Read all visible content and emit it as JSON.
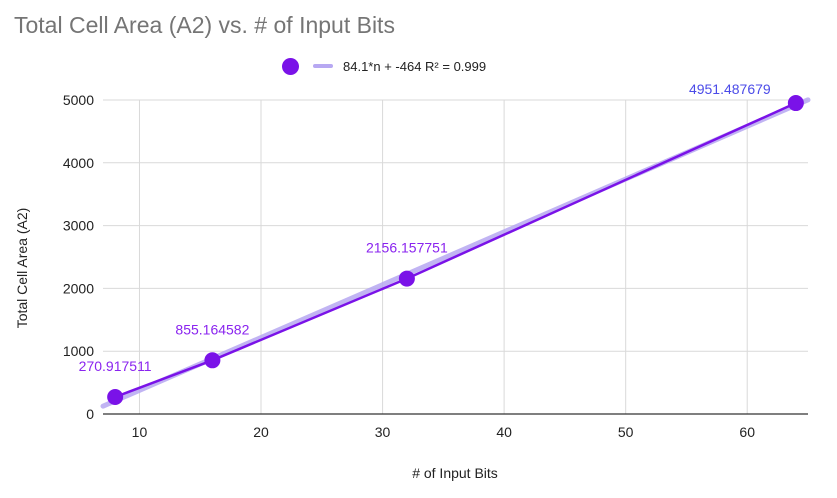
{
  "chart_data": {
    "type": "scatter",
    "title": "Total Cell Area (A2) vs. # of Input Bits",
    "xlabel": "# of Input Bits",
    "ylabel": "Total Cell Area (A2)",
    "xlim": [
      7,
      65
    ],
    "ylim": [
      0,
      5000
    ],
    "x_ticks": [
      10,
      20,
      30,
      40,
      50,
      60
    ],
    "y_ticks": [
      0,
      1000,
      2000,
      3000,
      4000,
      5000
    ],
    "grid": true,
    "legend_position": "top",
    "series": [
      {
        "x": [
          8,
          16,
          32,
          64
        ],
        "y": [
          270.917511,
          855.164582,
          2156.157751,
          4951.487679
        ],
        "labels": [
          "270.917511",
          "855.164582",
          "2156.157751",
          "4951.487679"
        ],
        "color": "#7a12e8"
      }
    ],
    "trendline": {
      "name": "84.1*n + -464 R² = 0.999",
      "slope": 84.1,
      "intercept": -464,
      "color": "#b7a8f2"
    }
  }
}
